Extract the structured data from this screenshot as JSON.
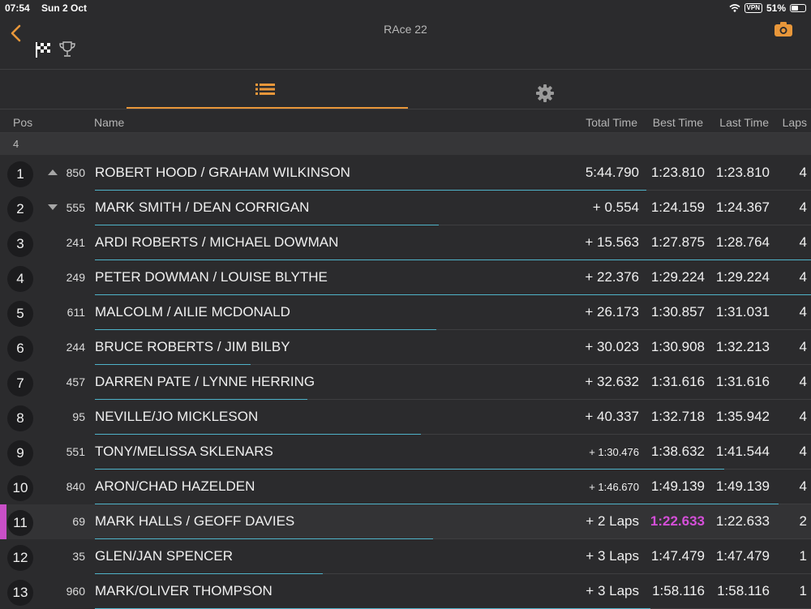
{
  "status": {
    "time": "07:54",
    "date": "Sun 2 Oct",
    "vpn": "VPN",
    "battery": "51%",
    "battery_fill": 0.51
  },
  "header": {
    "title": "RAce 22"
  },
  "columns": {
    "pos": "Pos",
    "name": "Name",
    "total": "Total Time",
    "best": "Best Time",
    "last": "Last Time",
    "laps": "Laps"
  },
  "group": {
    "label": "4"
  },
  "colors": {
    "accent": "#e8973a",
    "gap_bar": "#4fb3c9",
    "highlight": "#d44fd8",
    "background": "#2b2b2d"
  },
  "rows": [
    {
      "pos": "1",
      "arrow": "up",
      "num": "850",
      "name": "ROBERT HOOD / GRAHAM WILKINSON",
      "total": "5:44.790",
      "best": "1:23.810",
      "last": "1:23.810",
      "laps": "4",
      "gap_fraction": 0.77
    },
    {
      "pos": "2",
      "arrow": "down",
      "num": "555",
      "name": "MARK SMITH / DEAN CORRIGAN",
      "total": "+ 0.554",
      "best": "1:24.159",
      "last": "1:24.367",
      "laps": "4",
      "gap_fraction": 0.48
    },
    {
      "pos": "3",
      "arrow": "",
      "num": "241",
      "name": "ARDI ROBERTS / MICHAEL DOWMAN",
      "total": "+ 15.563",
      "best": "1:27.875",
      "last": "1:28.764",
      "laps": "4",
      "gap_fraction": 1.0
    },
    {
      "pos": "4",
      "arrow": "",
      "num": "249",
      "name": "PETER DOWMAN / LOUISE BLYTHE",
      "total": "+ 22.376",
      "best": "1:29.224",
      "last": "1:29.224",
      "laps": "4",
      "gap_fraction": 1.0
    },
    {
      "pos": "5",
      "arrow": "",
      "num": "611",
      "name": "MALCOLM / AILIE MCDONALD",
      "total": "+ 26.173",
      "best": "1:30.857",
      "last": "1:31.031",
      "laps": "4",
      "gap_fraction": 0.477
    },
    {
      "pos": "6",
      "arrow": "",
      "num": "244",
      "name": "BRUCE ROBERTS / JIM BILBY",
      "total": "+ 30.023",
      "best": "1:30.908",
      "last": "1:32.213",
      "laps": "4",
      "gap_fraction": 0.218
    },
    {
      "pos": "7",
      "arrow": "",
      "num": "457",
      "name": "DARREN PATE / LYNNE HERRING",
      "total": "+ 32.632",
      "best": "1:31.616",
      "last": "1:31.616",
      "laps": "4",
      "gap_fraction": 0.297
    },
    {
      "pos": "8",
      "arrow": "",
      "num": "95",
      "name": "NEVILLE/JO MICKLESON",
      "total": "+ 40.337",
      "best": "1:32.718",
      "last": "1:35.942",
      "laps": "4",
      "gap_fraction": 0.455
    },
    {
      "pos": "9",
      "arrow": "",
      "num": "551",
      "name": "TONY/MELISSA SKLENARS",
      "total": "+ 1:30.476",
      "best": "1:38.632",
      "last": "1:41.544",
      "laps": "4",
      "gap_fraction": 0.879,
      "small": true
    },
    {
      "pos": "10",
      "arrow": "",
      "num": "840",
      "name": "ARON/CHAD HAZELDEN",
      "total": "+ 1:46.670",
      "best": "1:49.139",
      "last": "1:49.139",
      "laps": "4",
      "gap_fraction": 0.955,
      "small": true
    },
    {
      "pos": "11",
      "arrow": "",
      "num": "69",
      "name": "MARK HALLS / GEOFF DAVIES",
      "total": "+ 2 Laps",
      "best": "1:22.633",
      "last": "1:22.633",
      "laps": "2",
      "gap_fraction": 0.472,
      "highlight": true
    },
    {
      "pos": "12",
      "arrow": "",
      "num": "35",
      "name": "GLEN/JAN SPENCER",
      "total": "+ 3 Laps",
      "best": "1:47.479",
      "last": "1:47.479",
      "laps": "1",
      "gap_fraction": 0.318
    },
    {
      "pos": "13",
      "arrow": "",
      "num": "960",
      "name": "MARK/OLIVER THOMPSON",
      "total": "+ 3 Laps",
      "best": "1:58.116",
      "last": "1:58.116",
      "laps": "1",
      "gap_fraction": 0.776
    }
  ]
}
